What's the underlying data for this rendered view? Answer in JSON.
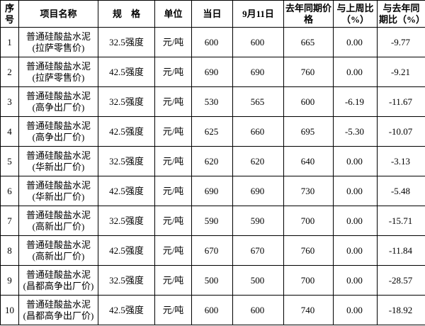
{
  "table": {
    "header": [
      "序号",
      "项目名称",
      "规    格",
      "单位",
      "当日",
      "9月11日",
      "去年同期价格",
      "与上周比（%）",
      "与去年同期比（%）"
    ],
    "rows": [
      [
        "1",
        [
          "普通硅酸盐水泥",
          "(拉萨零售价)"
        ],
        "32.5强度",
        "元/吨",
        "600",
        "600",
        "665",
        "0.00",
        "-9.77"
      ],
      [
        "2",
        [
          "普通硅酸盐水泥",
          "(拉萨零售价)"
        ],
        "42.5强度",
        "元/吨",
        "690",
        "690",
        "760",
        "0.00",
        "-9.21"
      ],
      [
        "3",
        [
          "普通硅酸盐水泥",
          "(高争出厂价)"
        ],
        "32.5强度",
        "元/吨",
        "530",
        "565",
        "600",
        "-6.19",
        "-11.67"
      ],
      [
        "4",
        [
          "普通硅酸盐水泥",
          "(高争出厂价)"
        ],
        "42.5强度",
        "元/吨",
        "625",
        "660",
        "695",
        "-5.30",
        "-10.07"
      ],
      [
        "5",
        [
          "普通硅酸盐水泥",
          "(华新出厂价)"
        ],
        "32.5强度",
        "元/吨",
        "620",
        "620",
        "640",
        "0.00",
        "-3.13"
      ],
      [
        "6",
        [
          "普通硅酸盐水泥",
          "(华新出厂价)"
        ],
        "42.5强度",
        "元/吨",
        "690",
        "690",
        "730",
        "0.00",
        "-5.48"
      ],
      [
        "7",
        [
          "普通硅酸盐水泥",
          "(高新出厂价)"
        ],
        "32.5强度",
        "元/吨",
        "590",
        "590",
        "700",
        "0.00",
        "-15.71"
      ],
      [
        "8",
        [
          "普通硅酸盐水泥",
          "(高新出厂价)"
        ],
        "42.5强度",
        "元/吨",
        "670",
        "670",
        "760",
        "0.00",
        "-11.84"
      ],
      [
        "9",
        [
          "普通硅酸盐水泥",
          "(昌都高争出厂价)"
        ],
        "32.5强度",
        "元/吨",
        "500",
        "500",
        "700",
        "0.00",
        "-28.57"
      ],
      [
        "10",
        [
          "普通硅酸盐水泥",
          "(昌都高争出厂价)"
        ],
        "42.5强度",
        "元/吨",
        "600",
        "600",
        "740",
        "0.00",
        "-18.92"
      ]
    ]
  }
}
